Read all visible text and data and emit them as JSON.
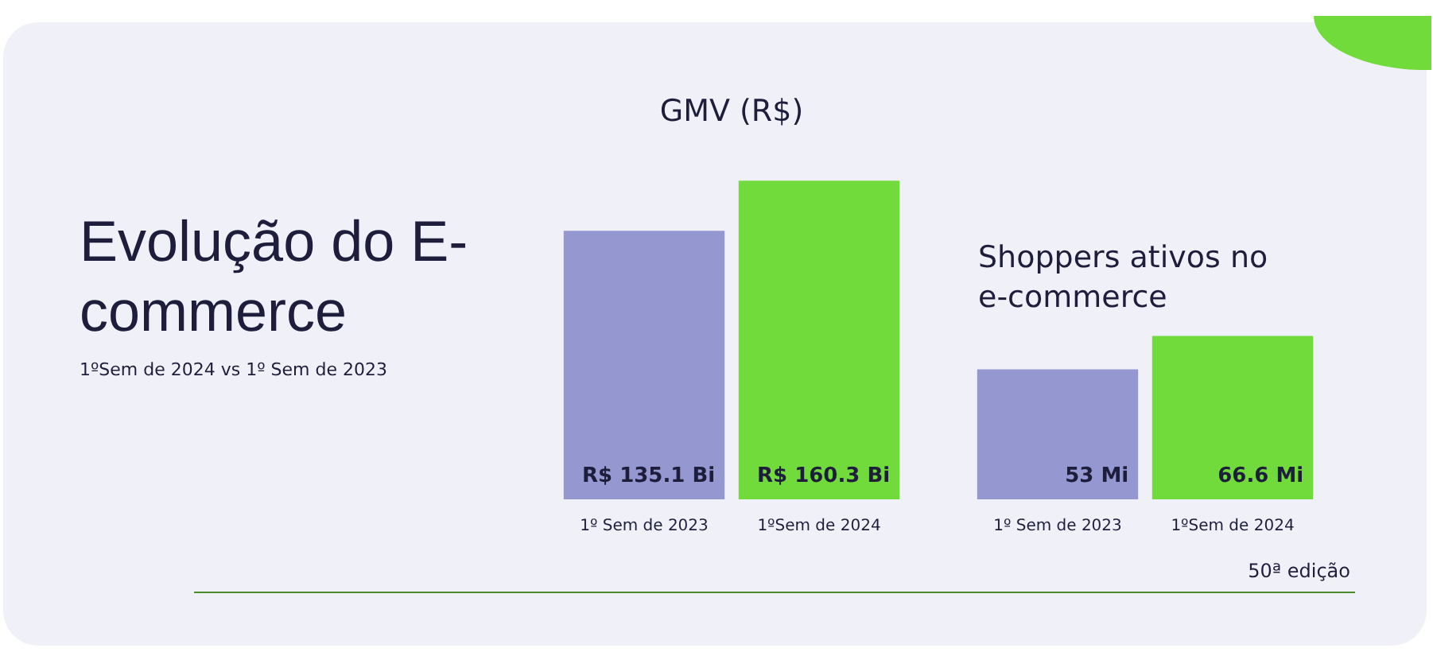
{
  "chart_data": [
    {
      "type": "other",
      "title": "Evolução do E-commerce",
      "subtitle": "1ºSem de 2024 vs 1º Sem de 2023",
      "annotations": [
        "50ª edição"
      ]
    },
    {
      "type": "bar",
      "title": "GMV (R$)",
      "categories": [
        "1º Sem de 2023",
        "1ºSem de 2024"
      ],
      "values": [
        135.1,
        160.3
      ],
      "colors": [
        "#9597d0",
        "#72db3c"
      ],
      "value_labels": [
        "R$ 135.1 Bi",
        "R$ 160.3 Bi"
      ]
    },
    {
      "type": "bar",
      "title": "Shoppers ativos no e-commerce",
      "categories": [
        "1º Sem de 2023",
        "1ºSem de 2024"
      ],
      "values": [
        53,
        66.6
      ],
      "colors": [
        "#9597d0",
        "#72db3c"
      ],
      "value_labels": [
        "53 Mi",
        "66.6 Mi"
      ]
    }
  ]
}
